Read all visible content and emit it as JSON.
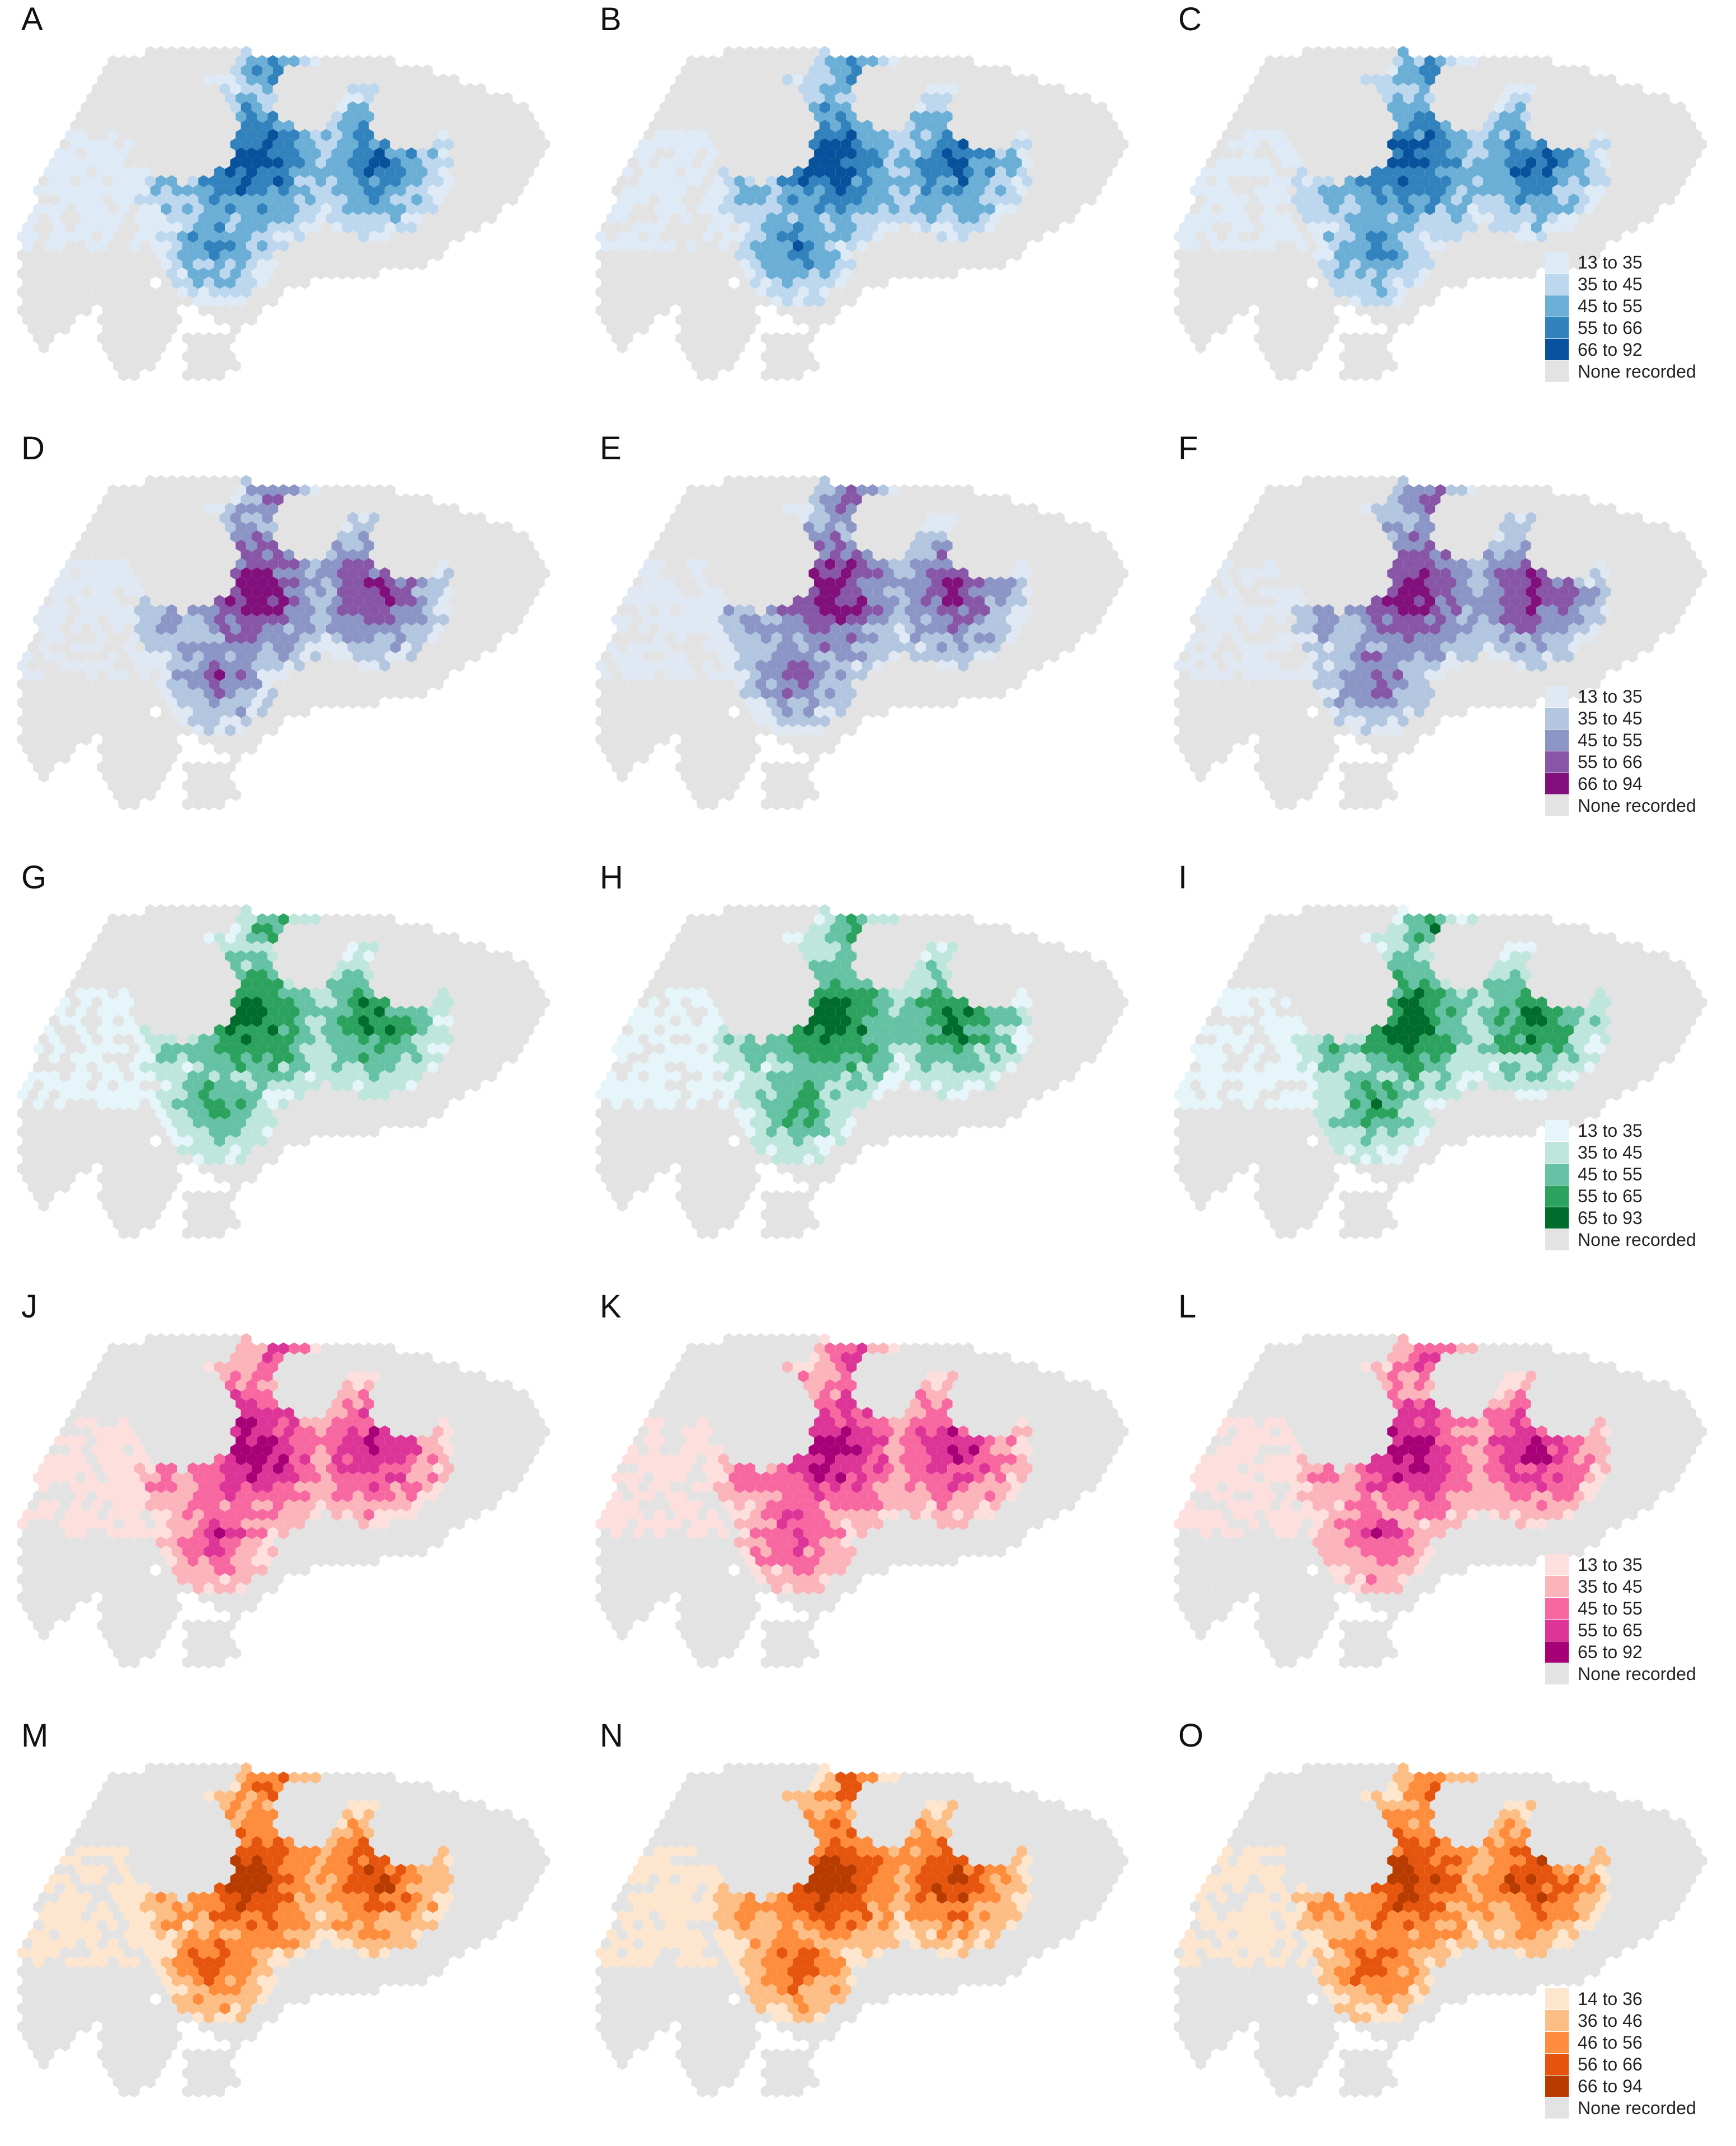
{
  "map_panels": {
    "A": {
      "label": "A",
      "palette": "blue"
    },
    "B": {
      "label": "B",
      "palette": "blue"
    },
    "C": {
      "label": "C",
      "palette": "blue"
    },
    "D": {
      "label": "D",
      "palette": "purple"
    },
    "E": {
      "label": "E",
      "palette": "purple"
    },
    "F": {
      "label": "F",
      "palette": "purple"
    },
    "G": {
      "label": "G",
      "palette": "green"
    },
    "H": {
      "label": "H",
      "palette": "green"
    },
    "I": {
      "label": "I",
      "palette": "green"
    },
    "J": {
      "label": "J",
      "palette": "pink"
    },
    "K": {
      "label": "K",
      "palette": "pink"
    },
    "L": {
      "label": "L",
      "palette": "pink"
    },
    "M": {
      "label": "M",
      "palette": "orange"
    },
    "N": {
      "label": "N",
      "palette": "orange"
    },
    "O": {
      "label": "O",
      "palette": "orange"
    }
  },
  "rows": [
    {
      "panels": [
        "A",
        "B",
        "C"
      ],
      "palette": "blue"
    },
    {
      "panels": [
        "D",
        "E",
        "F"
      ],
      "palette": "purple"
    },
    {
      "panels": [
        "G",
        "H",
        "I"
      ],
      "palette": "green"
    },
    {
      "panels": [
        "J",
        "K",
        "L"
      ],
      "palette": "pink"
    },
    {
      "panels": [
        "M",
        "N",
        "O"
      ],
      "palette": "orange"
    }
  ],
  "palettes": {
    "blue": [
      "#deebf7",
      "#bdd7ee",
      "#6baed6",
      "#3182bd",
      "#08519c"
    ],
    "purple": [
      "#dfe8f3",
      "#b3c6e0",
      "#8c96c6",
      "#8856a7",
      "#810f7c"
    ],
    "green": [
      "#e5f5f9",
      "#bfe6dd",
      "#66c2a4",
      "#2ca25f",
      "#006d2c"
    ],
    "pink": [
      "#fde0dd",
      "#fbb4b9",
      "#f768a1",
      "#dd3497",
      "#a80077"
    ],
    "orange": [
      "#fee6ce",
      "#fdbe85",
      "#fd8d3c",
      "#e6550d",
      "#b83b00"
    ]
  },
  "none_color": "#e3e3e3",
  "legends": {
    "blue": {
      "items": [
        "13 to 35",
        "35 to 45",
        "45 to 55",
        "55 to 66",
        "66 to 92"
      ],
      "none_label": "None recorded"
    },
    "purple": {
      "items": [
        "13 to 35",
        "35 to 45",
        "45 to 55",
        "55 to 66",
        "66 to 94"
      ],
      "none_label": "None recorded"
    },
    "green": {
      "items": [
        "13 to 35",
        "35 to 45",
        "45 to 55",
        "55 to 65",
        "65 to 93"
      ],
      "none_label": "None recorded"
    },
    "pink": {
      "items": [
        "13 to 35",
        "35 to 45",
        "45 to 55",
        "55 to 65",
        "65 to 92"
      ],
      "none_label": "None recorded"
    },
    "orange": {
      "items": [
        "14 to 36",
        "36 to 46",
        "46 to 56",
        "56 to 66",
        "66 to 94"
      ],
      "none_label": "None recorded"
    }
  },
  "legend_placement": "bottom-right of right-column panels"
}
